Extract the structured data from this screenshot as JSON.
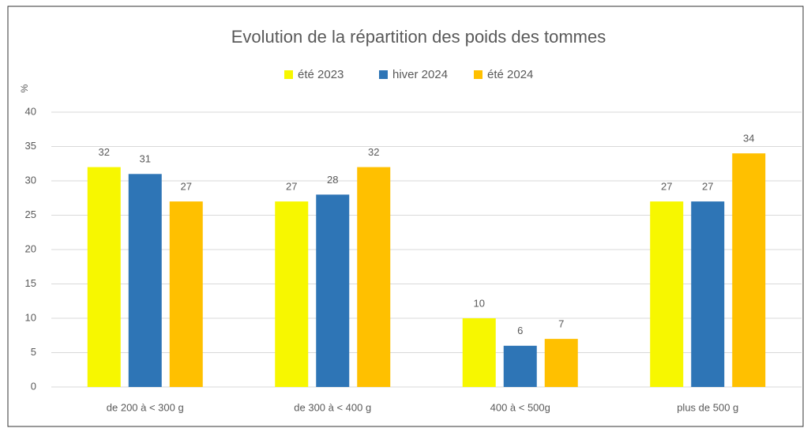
{
  "chart_data": {
    "type": "bar",
    "title": "Evolution de la répartition des poids des tommes",
    "y_label": "%",
    "categories": [
      "de 200 à < 300 g",
      "de 300 à < 400 g",
      "400  à < 500g",
      "plus de 500 g"
    ],
    "series": [
      {
        "name": "été 2023",
        "color": "#f7f700",
        "values": [
          32,
          27,
          10,
          27
        ]
      },
      {
        "name": "hiver 2024",
        "color": "#2e75b6",
        "values": [
          31,
          28,
          6,
          27
        ]
      },
      {
        "name": "été 2024",
        "color": "#ffc000",
        "values": [
          27,
          32,
          7,
          34
        ]
      }
    ],
    "ylim": [
      0,
      40
    ],
    "yticks": [
      0,
      5,
      10,
      15,
      20,
      25,
      30,
      35,
      40
    ],
    "grid": true,
    "legend": "top"
  }
}
